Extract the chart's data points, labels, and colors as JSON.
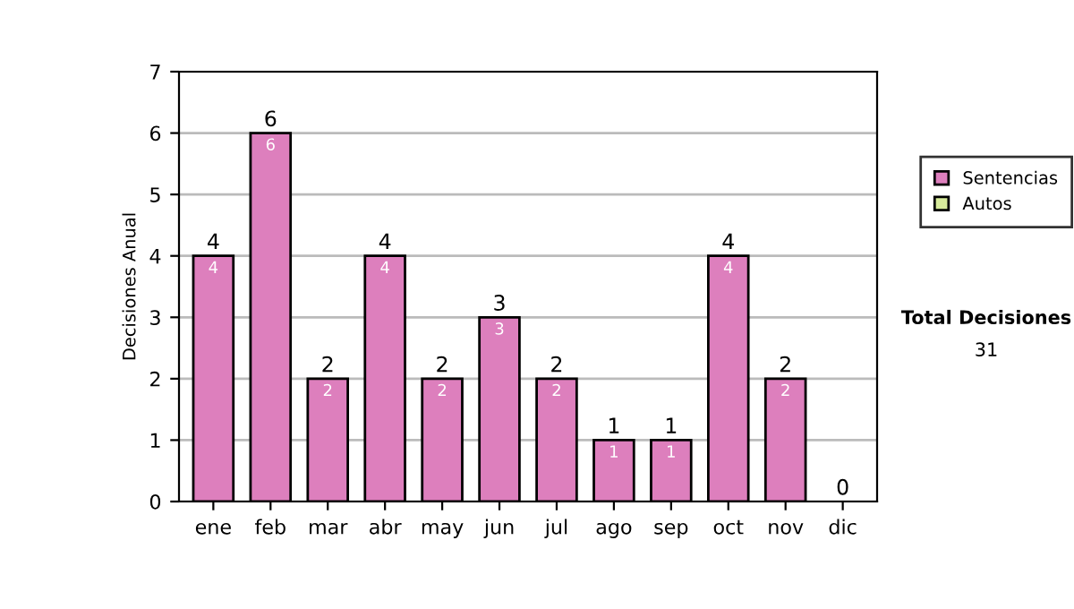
{
  "chart_data": {
    "type": "bar",
    "stacked": true,
    "ylabel": "Decisiones Anual",
    "categories": [
      "ene",
      "feb",
      "mar",
      "abr",
      "may",
      "jun",
      "jul",
      "ago",
      "sep",
      "oct",
      "nov",
      "dic"
    ],
    "series": [
      {
        "name": "Sentencias",
        "color": "#dd7fbd",
        "values": [
          4,
          6,
          2,
          4,
          2,
          3,
          2,
          1,
          1,
          4,
          2,
          0
        ],
        "value_labels": [
          "4",
          "6",
          "2",
          "4",
          "2",
          "3",
          "2",
          "1",
          "1",
          "4",
          "2",
          null
        ]
      },
      {
        "name": "Autos",
        "color": "#d8ec9c",
        "values": [
          0,
          0,
          0,
          0,
          0,
          0,
          0,
          0,
          0,
          0,
          0,
          0
        ]
      }
    ],
    "totals": [
      "4",
      "6",
      "2",
      "4",
      "2",
      "3",
      "2",
      "1",
      "1",
      "4",
      "2",
      "0"
    ],
    "ylim": [
      0,
      7
    ],
    "yticks": [
      0,
      1,
      2,
      3,
      4,
      5,
      6,
      7
    ],
    "grid": "y",
    "legend": "right",
    "annotations": [
      "Total Decisiones",
      "31"
    ]
  }
}
